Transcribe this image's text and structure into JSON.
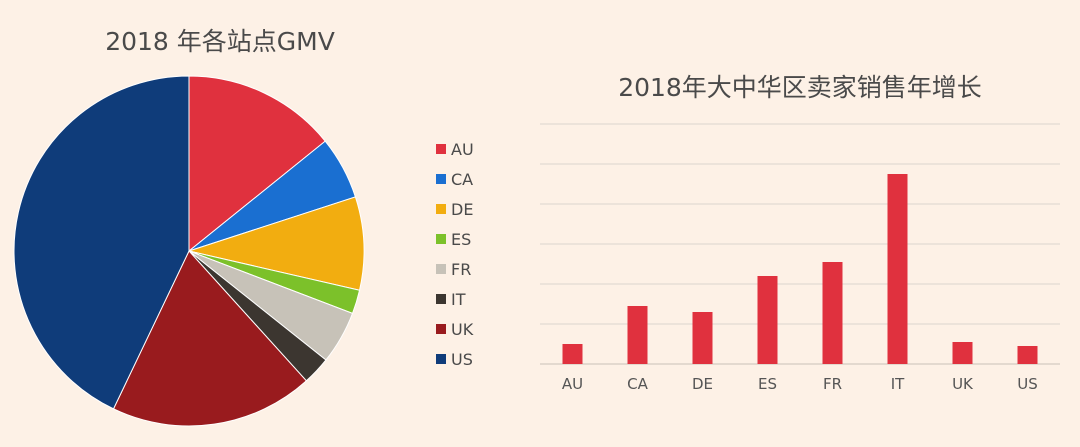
{
  "chart_data": [
    {
      "type": "pie",
      "title": "2018 年各站点GMV",
      "legend_position": "right",
      "slices": [
        {
          "label": "AU",
          "value": 14.2,
          "color": "#e0313e"
        },
        {
          "label": "CA",
          "value": 5.8,
          "color": "#1a6fd1"
        },
        {
          "label": "DE",
          "value": 8.6,
          "color": "#f2ad10"
        },
        {
          "label": "ES",
          "value": 2.2,
          "color": "#7cc12a"
        },
        {
          "label": "FR",
          "value": 4.9,
          "color": "#c7c2b8"
        },
        {
          "label": "IT",
          "value": 2.6,
          "color": "#3c3630"
        },
        {
          "label": "UK",
          "value": 18.8,
          "color": "#991b1e"
        },
        {
          "label": "US",
          "value": 42.9,
          "color": "#0f3c7a"
        }
      ]
    },
    {
      "type": "bar",
      "title": "2018年大中华区卖家销售年增长",
      "categories": [
        "AU",
        "CA",
        "DE",
        "ES",
        "FR",
        "IT",
        "UK",
        "US"
      ],
      "values": [
        0.5,
        1.45,
        1.3,
        2.2,
        2.55,
        4.75,
        0.55,
        0.45
      ],
      "ylim": [
        0,
        6
      ],
      "grid": true,
      "color": "#e0313e"
    }
  ]
}
